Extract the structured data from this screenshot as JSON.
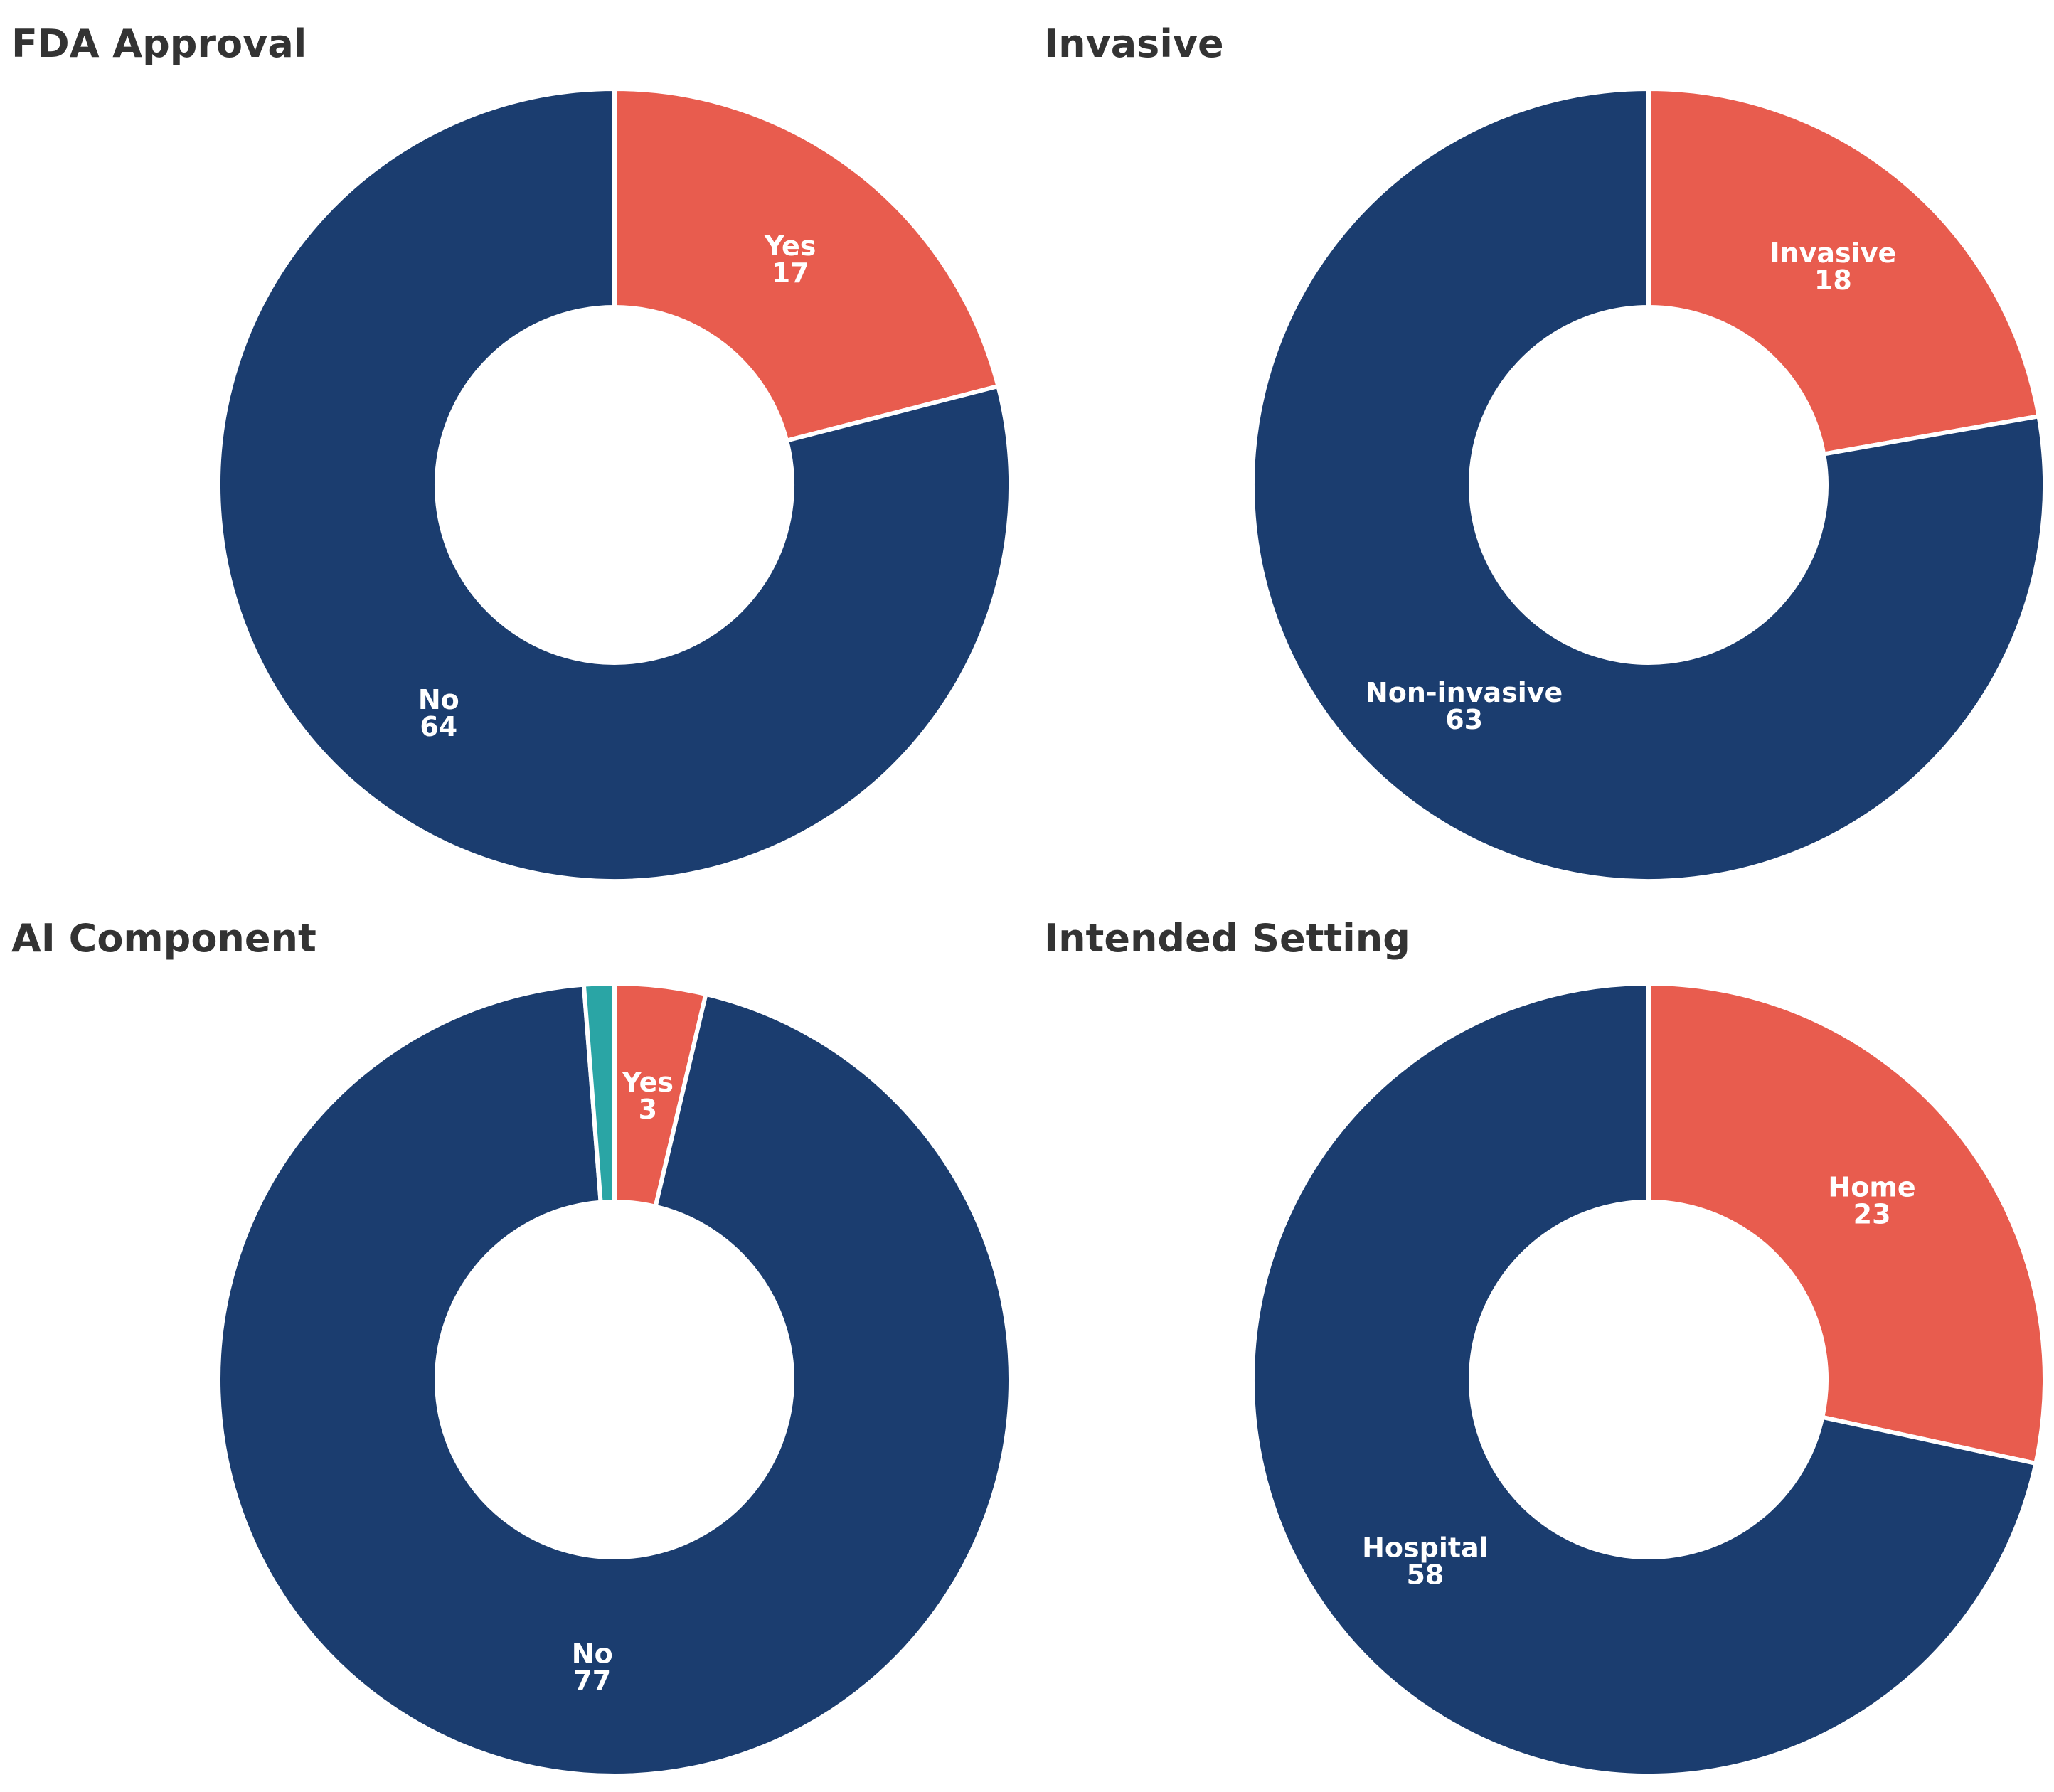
{
  "chart_data": [
    {
      "type": "pie",
      "variant": "donut",
      "title": "FDA Approval",
      "slices": [
        {
          "label": "Yes",
          "value": 17,
          "color": "#e85c4e"
        },
        {
          "label": "No",
          "value": 64,
          "color": "#1b3d6f"
        }
      ]
    },
    {
      "type": "pie",
      "variant": "donut",
      "title": "Invasive",
      "slices": [
        {
          "label": "Invasive",
          "value": 18,
          "color": "#e85c4e"
        },
        {
          "label": "Non-invasive",
          "value": 63,
          "color": "#1b3d6f"
        }
      ]
    },
    {
      "type": "pie",
      "variant": "donut",
      "title": "AI Component",
      "slices": [
        {
          "label": "Yes",
          "value": 3,
          "color": "#e85c4e"
        },
        {
          "label": "No",
          "value": 77,
          "color": "#1b3d6f"
        },
        {
          "label": "",
          "value": 1,
          "color": "#2aa5a5"
        }
      ]
    },
    {
      "type": "pie",
      "variant": "donut",
      "title": "Intended Setting",
      "slices": [
        {
          "label": "Home",
          "value": 23,
          "color": "#e85c4e"
        },
        {
          "label": "Hospital",
          "value": 58,
          "color": "#1b3d6f"
        }
      ]
    }
  ]
}
